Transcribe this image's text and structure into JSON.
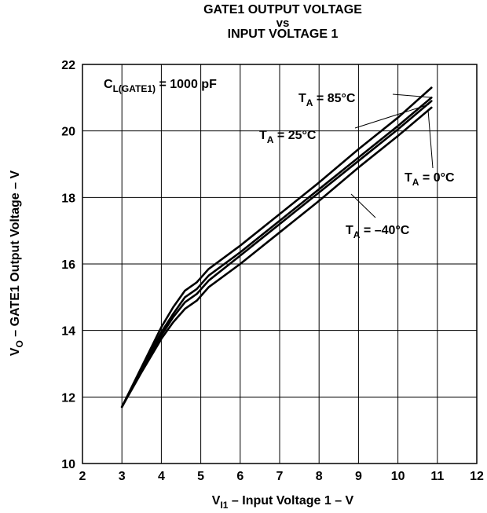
{
  "chart_data": {
    "type": "line",
    "title": "GATE1 OUTPUT VOLTAGE",
    "title_vs": "vs",
    "subtitle": "INPUT VOLTAGE 1",
    "xlabel": {
      "base": "V",
      "sub": "I1",
      "rest": " – Input Voltage 1 – V"
    },
    "ylabel": {
      "base": "V",
      "sub": "O",
      "rest": " – GATE1 Output Voltage – V"
    },
    "xlim": [
      2,
      12
    ],
    "ylim": [
      10,
      22
    ],
    "x_ticks": [
      "2",
      "3",
      "4",
      "5",
      "6",
      "7",
      "8",
      "9",
      "10",
      "11",
      "12"
    ],
    "y_ticks": [
      "10",
      "12",
      "14",
      "16",
      "18",
      "20",
      "22"
    ],
    "grid": true,
    "condition": {
      "base": "C",
      "sub": "L(GATE1)",
      "rest": " = 1000 pF"
    },
    "line_color": "#000000",
    "series": [
      {
        "name": "85°C",
        "label": {
          "base": "T",
          "sub": "A",
          "rest": " = 85°C"
        },
        "x": [
          3.0,
          3.5,
          4.0,
          4.3,
          4.6,
          4.9,
          5.2,
          6.0,
          7.0,
          8.0,
          9.0,
          10.0,
          10.85
        ],
        "y": [
          11.7,
          12.9,
          14.1,
          14.7,
          15.2,
          15.45,
          15.85,
          16.55,
          17.5,
          18.45,
          19.45,
          20.4,
          21.3
        ]
      },
      {
        "name": "25°C",
        "label": {
          "base": "T",
          "sub": "A",
          "rest": " = 25°C"
        },
        "x": [
          3.0,
          3.5,
          4.0,
          4.3,
          4.6,
          4.9,
          5.2,
          6.0,
          7.0,
          8.0,
          9.0,
          10.0,
          10.85
        ],
        "y": [
          11.7,
          12.85,
          13.95,
          14.5,
          15.0,
          15.25,
          15.65,
          16.35,
          17.3,
          18.25,
          19.2,
          20.15,
          21.0
        ]
      },
      {
        "name": "0°C",
        "label": {
          "base": "T",
          "sub": "A",
          "rest": " = 0°C"
        },
        "x": [
          3.0,
          3.5,
          4.0,
          4.3,
          4.6,
          4.9,
          5.2,
          6.0,
          7.0,
          8.0,
          9.0,
          10.0,
          10.85
        ],
        "y": [
          11.7,
          12.8,
          13.85,
          14.4,
          14.85,
          15.1,
          15.5,
          16.25,
          17.2,
          18.15,
          19.1,
          20.05,
          20.9
        ]
      },
      {
        "name": "–40°C",
        "label": {
          "base": "T",
          "sub": "A",
          "rest": " = –40°C"
        },
        "x": [
          3.0,
          3.5,
          4.0,
          4.3,
          4.6,
          4.9,
          5.2,
          6.0,
          7.0,
          8.0,
          9.0,
          10.0,
          10.85
        ],
        "y": [
          11.7,
          12.75,
          13.75,
          14.25,
          14.65,
          14.9,
          15.3,
          16.0,
          16.95,
          17.9,
          18.9,
          19.85,
          20.7
        ]
      }
    ]
  }
}
